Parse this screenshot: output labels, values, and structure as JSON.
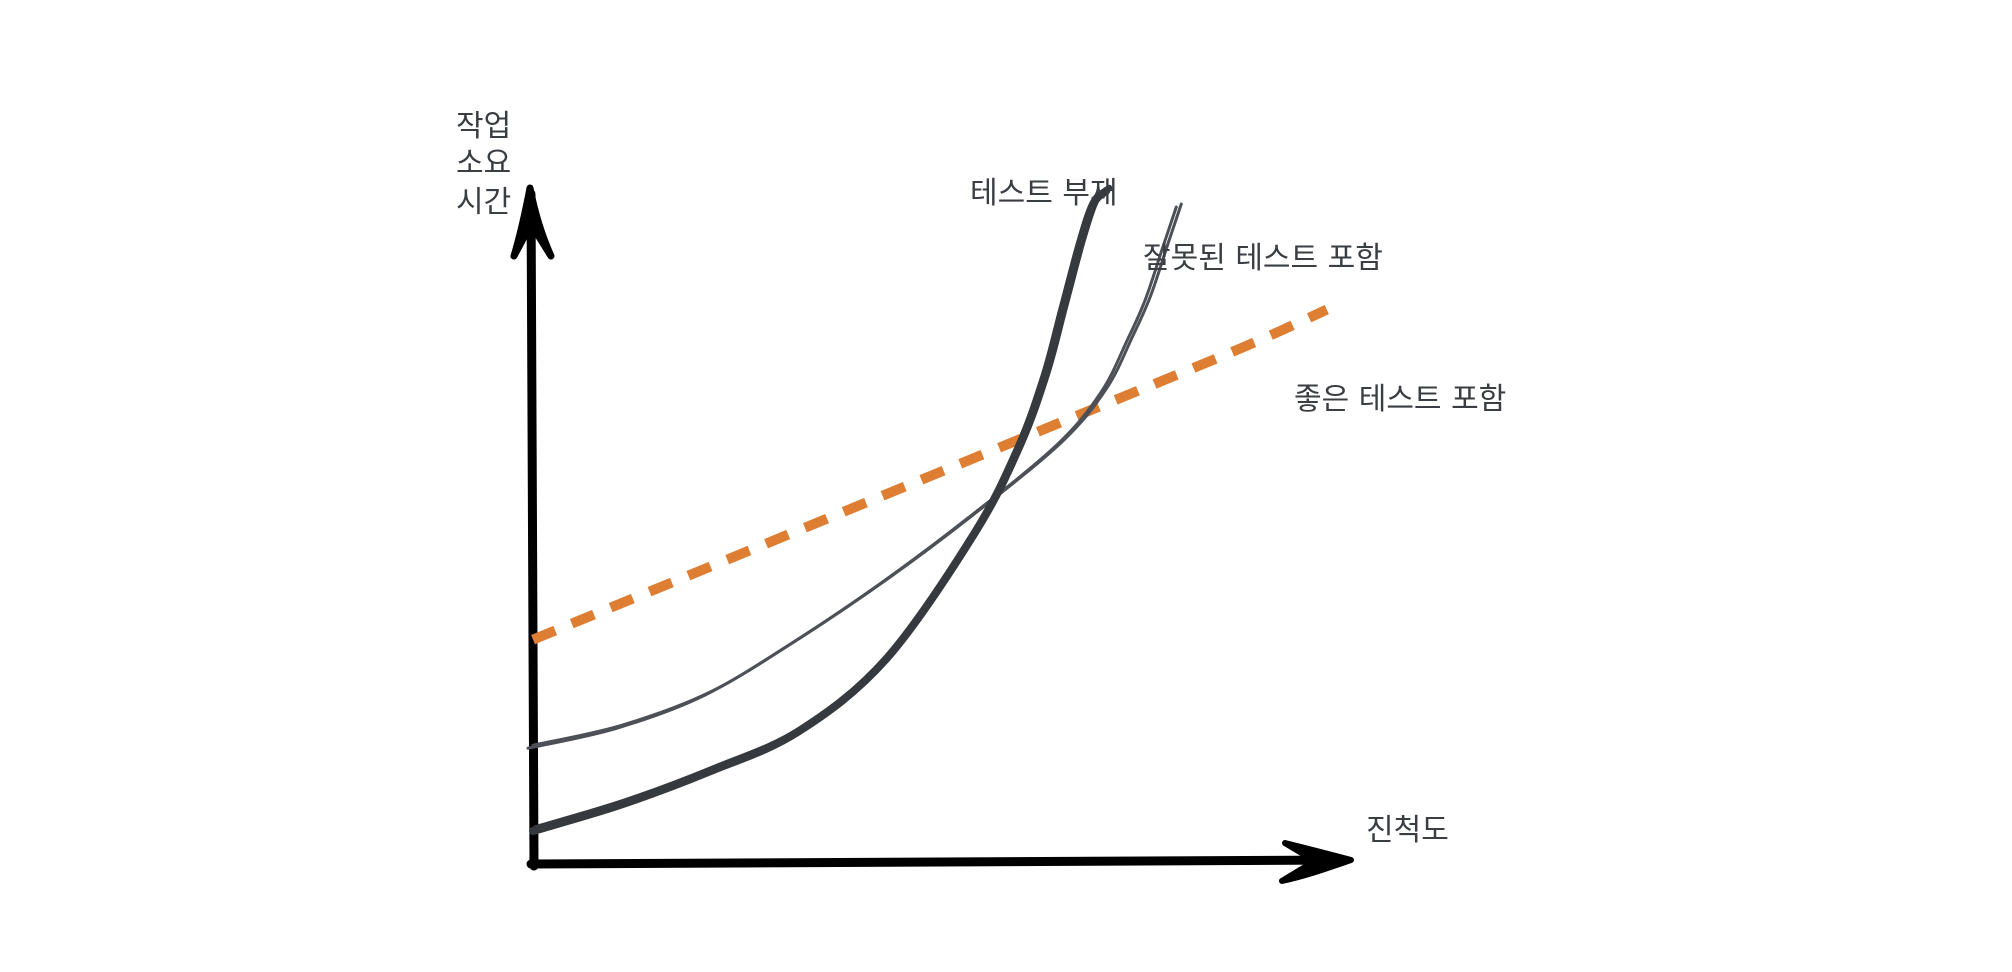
{
  "chart_data": {
    "type": "line",
    "title": "",
    "ylabel": [
      "작업",
      "소요",
      "시간"
    ],
    "xlabel": "진척도",
    "xlim": [
      0,
      100
    ],
    "ylim": [
      0,
      100
    ],
    "grid": false,
    "legend": "none",
    "series": [
      {
        "name": "테스트 부재",
        "color": "#36393d",
        "style": "solid-thick",
        "x": [
          0,
          10,
          20,
          30,
          40,
          50,
          55,
          58,
          60,
          62,
          63.5,
          65
        ],
        "y": [
          5,
          9,
          14,
          20,
          31,
          50,
          63,
          74,
          84,
          94,
          100,
          102
        ]
      },
      {
        "name": "잘못된 테스트 포함",
        "color": "#4d5056",
        "style": "solid-thin",
        "x": [
          0,
          10,
          20,
          30,
          40,
          50,
          60,
          65,
          68,
          70,
          72,
          73.5
        ],
        "y": [
          18,
          21,
          26,
          34,
          43,
          53,
          64,
          72,
          80,
          86,
          94,
          100
        ]
      },
      {
        "name": "좋은 테스트 포함",
        "color": "#dd7e33",
        "style": "dashed",
        "x": [
          0,
          20,
          40,
          60,
          80,
          90
        ],
        "y": [
          34,
          45,
          56,
          67,
          78,
          84
        ]
      }
    ]
  }
}
